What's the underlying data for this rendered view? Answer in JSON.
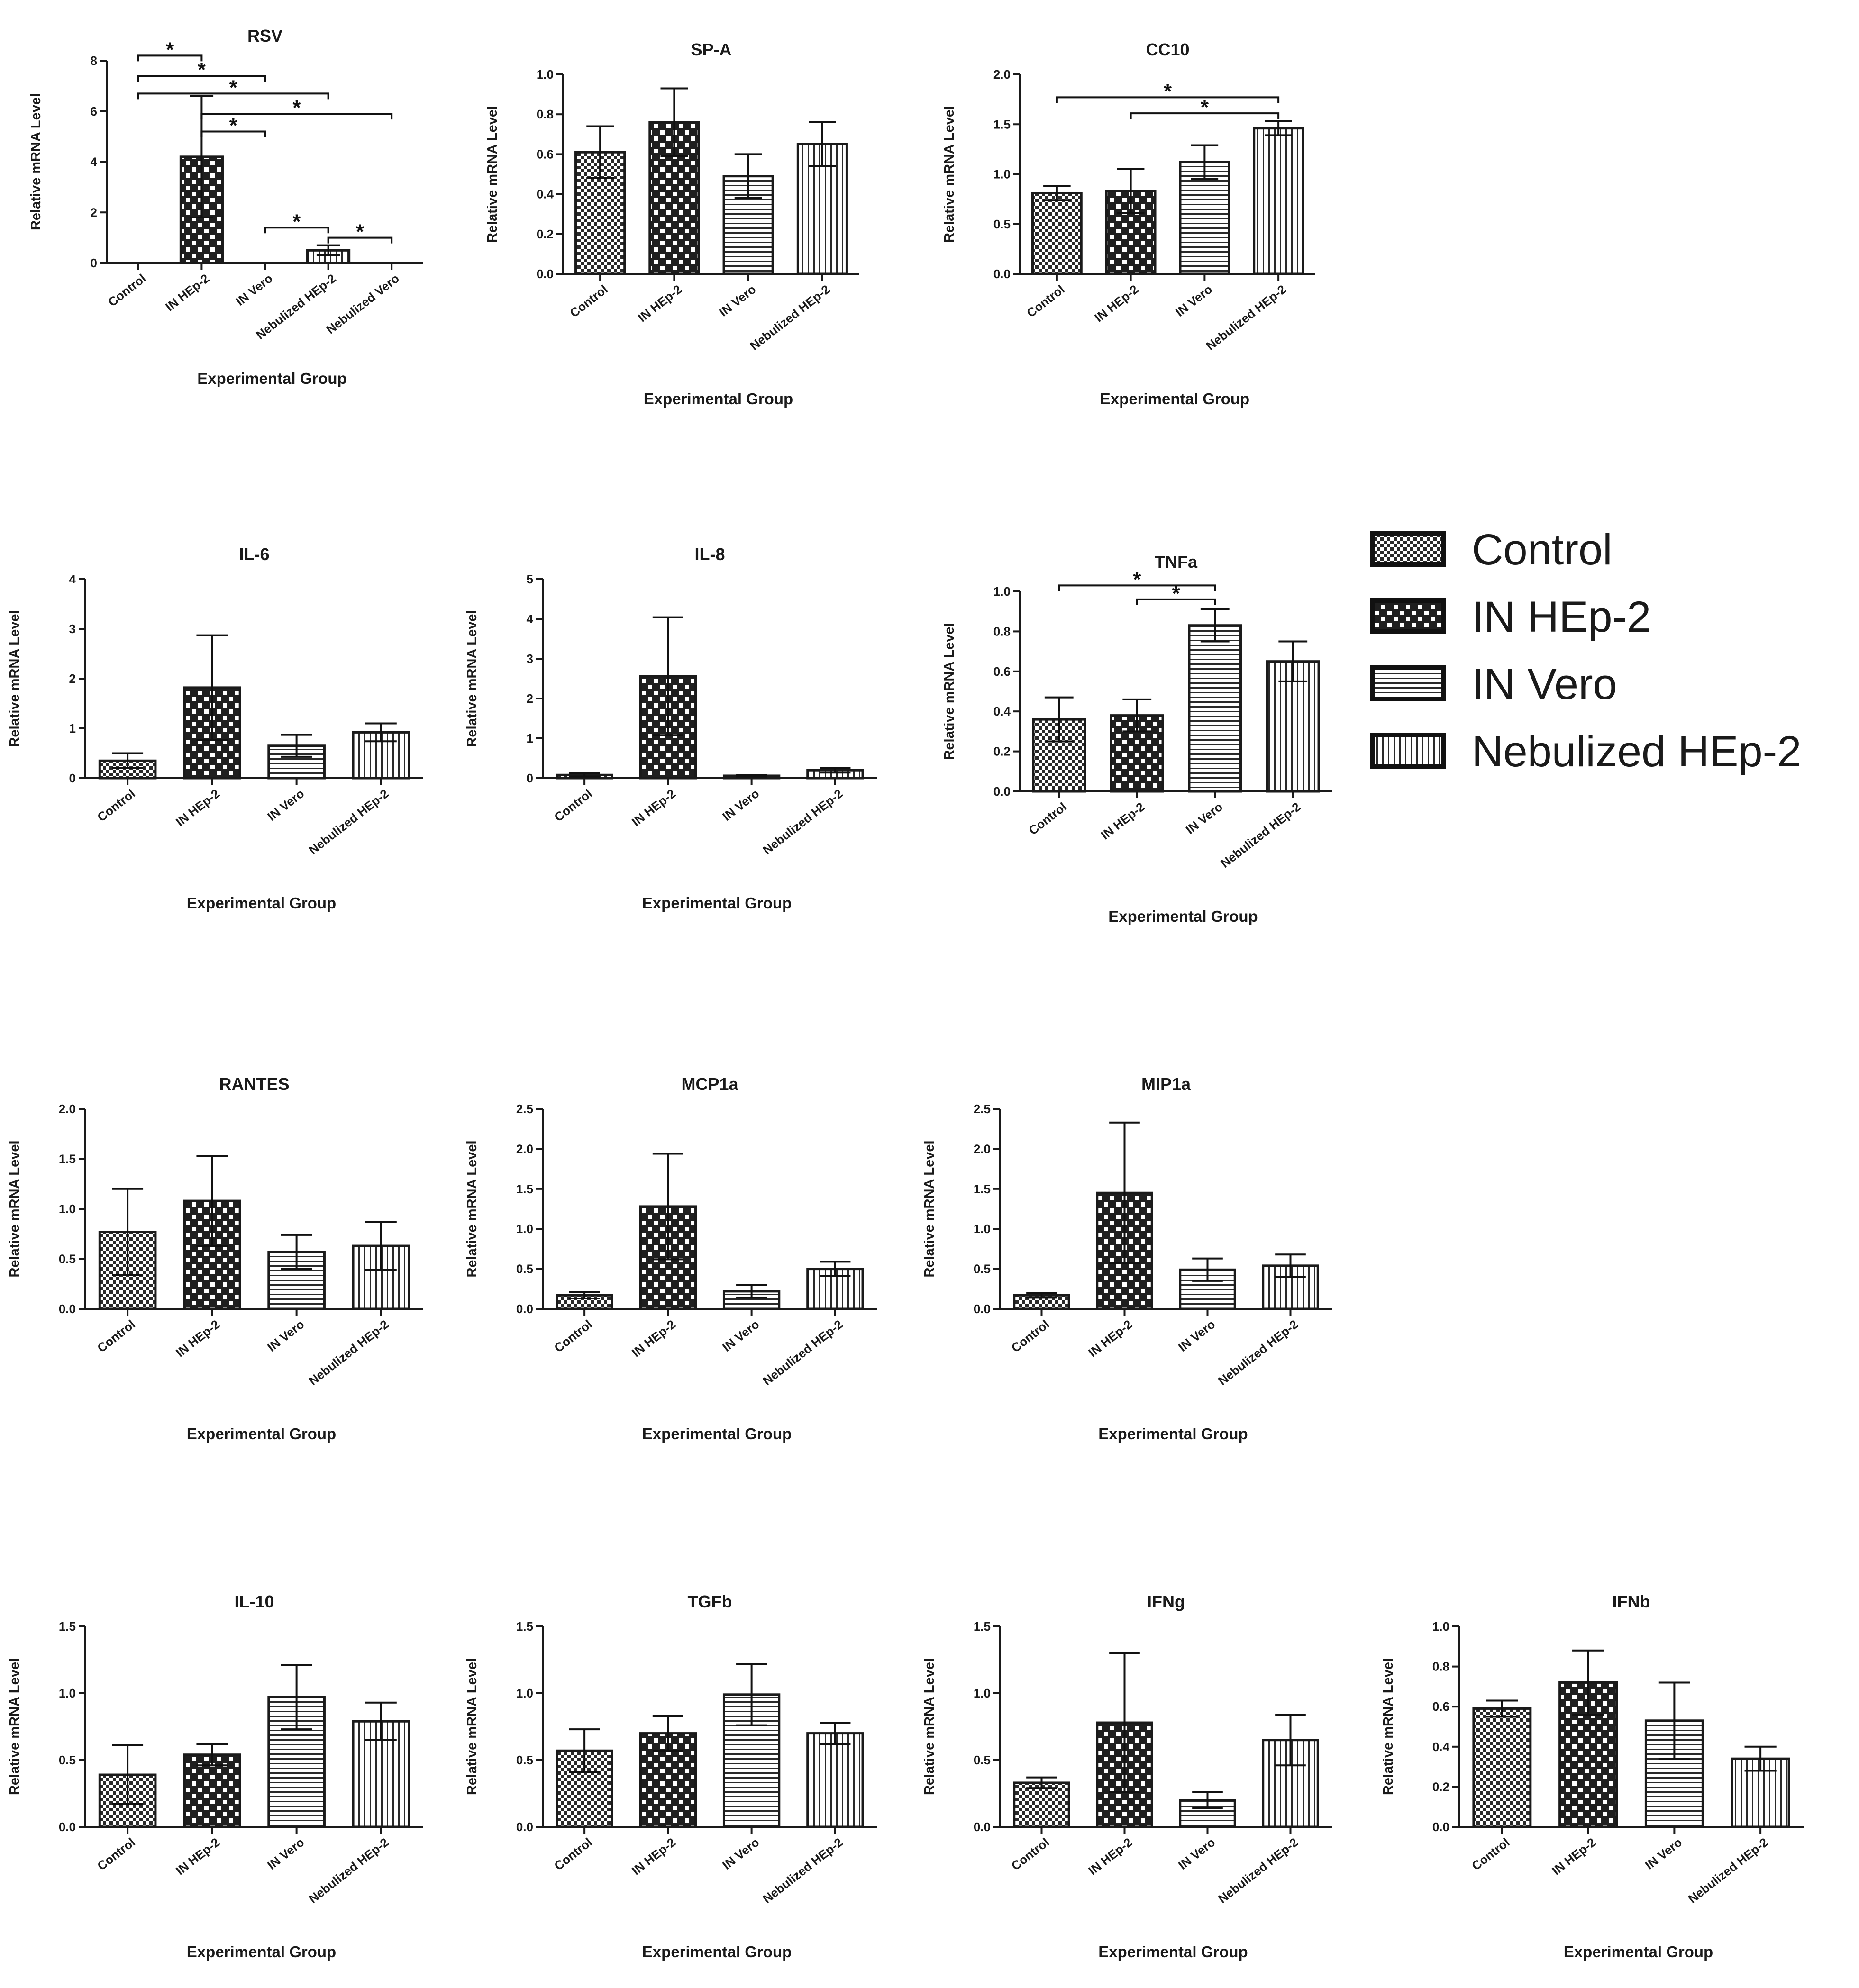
{
  "chart_data": [
    {
      "type": "bar",
      "title": "RSV",
      "xlabel": "Experimental Group",
      "ylabel": "Relative mRNA Level",
      "ylim": [
        0,
        8
      ],
      "yticks": [
        0,
        2,
        4,
        6,
        8
      ],
      "tick_labels": [
        "0",
        "2",
        "4",
        "6",
        "8"
      ],
      "categories": [
        "Control",
        "IN HEp-2",
        "IN Vero",
        "Nebulized HEp-2",
        "Nebulized Vero"
      ],
      "patterns": [
        "control",
        "inhep2",
        "invero",
        "nebhep2",
        "nebvero"
      ],
      "values": [
        0,
        4.2,
        0,
        0.5,
        0
      ],
      "errors": [
        0,
        2.4,
        0,
        0.2,
        0
      ],
      "significance": [
        {
          "from": 0,
          "to": 1,
          "y": 8.2,
          "label": "*"
        },
        {
          "from": 0,
          "to": 2,
          "y": 7.4,
          "label": "*"
        },
        {
          "from": 0,
          "to": 3,
          "y": 6.7,
          "label": "*"
        },
        {
          "from": 1,
          "to": 4,
          "y": 5.9,
          "label": "*"
        },
        {
          "from": 1,
          "to": 2,
          "y": 5.2,
          "label": "*"
        },
        {
          "from": 2,
          "to": 3,
          "y": 1.4,
          "label": "*"
        },
        {
          "from": 3,
          "to": 4,
          "y": 1.0,
          "label": "*"
        }
      ]
    },
    {
      "type": "bar",
      "title": "SP-A",
      "xlabel": "Experimental Group",
      "ylabel": "Relative mRNA Level",
      "ylim": [
        0,
        1
      ],
      "yticks": [
        0,
        0.2,
        0.4,
        0.6,
        0.8,
        1.0
      ],
      "tick_labels": [
        "0.0",
        "0.2",
        "0.4",
        "0.6",
        "0.8",
        "1.0"
      ],
      "categories": [
        "Control",
        "IN HEp-2",
        "IN Vero",
        "Nebulized HEp-2"
      ],
      "patterns": [
        "control",
        "inhep2",
        "invero",
        "nebhep2"
      ],
      "values": [
        0.61,
        0.76,
        0.49,
        0.65
      ],
      "errors": [
        0.13,
        0.17,
        0.11,
        0.11
      ],
      "significance": []
    },
    {
      "type": "bar",
      "title": "CC10",
      "xlabel": "Experimental Group",
      "ylabel": "Relative mRNA Level",
      "ylim": [
        0,
        2
      ],
      "yticks": [
        0,
        0.5,
        1,
        1.5,
        2
      ],
      "tick_labels": [
        "0.0",
        "0.5",
        "1.0",
        "1.5",
        "2.0"
      ],
      "categories": [
        "Control",
        "IN HEp-2",
        "IN Vero",
        "Nebulized HEp-2"
      ],
      "patterns": [
        "control",
        "inhep2",
        "invero",
        "nebhep2"
      ],
      "values": [
        0.81,
        0.83,
        1.12,
        1.46
      ],
      "errors": [
        0.07,
        0.22,
        0.17,
        0.07
      ],
      "significance": [
        {
          "from": 0,
          "to": 3,
          "y": 1.77,
          "label": "*"
        },
        {
          "from": 1,
          "to": 3,
          "y": 1.61,
          "label": "*"
        }
      ]
    },
    {
      "type": "bar",
      "title": "IL-6",
      "xlabel": "Experimental Group",
      "ylabel": "Relative mRNA Level",
      "ylim": [
        0,
        4
      ],
      "yticks": [
        0,
        1,
        2,
        3,
        4
      ],
      "tick_labels": [
        "0",
        "1",
        "2",
        "3",
        "4"
      ],
      "categories": [
        "Control",
        "IN HEp-2",
        "IN Vero",
        "Nebulized HEp-2"
      ],
      "patterns": [
        "control",
        "inhep2",
        "invero",
        "nebhep2"
      ],
      "values": [
        0.35,
        1.82,
        0.65,
        0.92
      ],
      "errors": [
        0.15,
        1.05,
        0.22,
        0.18
      ],
      "significance": []
    },
    {
      "type": "bar",
      "title": "IL-8",
      "xlabel": "Experimental Group",
      "ylabel": "Relative mRNA Level",
      "ylim": [
        0,
        5
      ],
      "yticks": [
        0,
        1,
        2,
        3,
        4,
        5
      ],
      "tick_labels": [
        "0",
        "1",
        "2",
        "3",
        "4",
        "5"
      ],
      "categories": [
        "Control",
        "IN HEp-2",
        "IN Vero",
        "Nebulized HEp-2"
      ],
      "patterns": [
        "control",
        "inhep2",
        "invero",
        "nebhep2"
      ],
      "values": [
        0.08,
        2.56,
        0.06,
        0.2
      ],
      "errors": [
        0.04,
        1.48,
        0.02,
        0.06
      ],
      "significance": []
    },
    {
      "type": "bar",
      "title": "TNFa",
      "xlabel": "Experimental Group",
      "ylabel": "Relative mRNA Level",
      "ylim": [
        0,
        1
      ],
      "yticks": [
        0,
        0.2,
        0.4,
        0.6,
        0.8,
        1.0
      ],
      "tick_labels": [
        "0.0",
        "0.2",
        "0.4",
        "0.6",
        "0.8",
        "1.0"
      ],
      "categories": [
        "Control",
        "IN HEp-2",
        "IN Vero",
        "Nebulized HEp-2"
      ],
      "patterns": [
        "control",
        "inhep2",
        "invero",
        "nebhep2"
      ],
      "values": [
        0.36,
        0.38,
        0.83,
        0.65
      ],
      "errors": [
        0.11,
        0.08,
        0.08,
        0.1
      ],
      "significance": [
        {
          "from": 0,
          "to": 2,
          "y": 1.03,
          "label": "*"
        },
        {
          "from": 1,
          "to": 2,
          "y": 0.96,
          "label": "*"
        }
      ]
    },
    {
      "type": "bar",
      "title": "RANTES",
      "xlabel": "Experimental Group",
      "ylabel": "Relative mRNA Level",
      "ylim": [
        0,
        2
      ],
      "yticks": [
        0,
        0.5,
        1,
        1.5,
        2
      ],
      "tick_labels": [
        "0.0",
        "0.5",
        "1.0",
        "1.5",
        "2.0"
      ],
      "categories": [
        "Control",
        "IN HEp-2",
        "IN Vero",
        "Nebulized HEp-2"
      ],
      "patterns": [
        "control",
        "inhep2",
        "invero",
        "nebhep2"
      ],
      "values": [
        0.77,
        1.08,
        0.57,
        0.63
      ],
      "errors": [
        0.43,
        0.45,
        0.17,
        0.24
      ],
      "significance": []
    },
    {
      "type": "bar",
      "title": "MCP1a",
      "xlabel": "Experimental Group",
      "ylabel": "Relative mRNA Level",
      "ylim": [
        0,
        2.5
      ],
      "yticks": [
        0,
        0.5,
        1,
        1.5,
        2,
        2.5
      ],
      "tick_labels": [
        "0.0",
        "0.5",
        "1.0",
        "1.5",
        "2.0",
        "2.5"
      ],
      "categories": [
        "Control",
        "IN HEp-2",
        "IN Vero",
        "Nebulized HEp-2"
      ],
      "patterns": [
        "control",
        "inhep2",
        "invero",
        "nebhep2"
      ],
      "values": [
        0.17,
        1.28,
        0.22,
        0.5
      ],
      "errors": [
        0.04,
        0.66,
        0.08,
        0.09
      ],
      "significance": []
    },
    {
      "type": "bar",
      "title": "MIP1a",
      "xlabel": "Experimental Group",
      "ylabel": "Relative mRNA Level",
      "ylim": [
        0,
        2.5
      ],
      "yticks": [
        0,
        0.5,
        1,
        1.5,
        2,
        2.5
      ],
      "tick_labels": [
        "0.0",
        "0.5",
        "1.0",
        "1.5",
        "2.0",
        "2.5"
      ],
      "categories": [
        "Control",
        "IN HEp-2",
        "IN Vero",
        "Nebulized HEp-2"
      ],
      "patterns": [
        "control",
        "inhep2",
        "invero",
        "nebhep2"
      ],
      "values": [
        0.17,
        1.45,
        0.49,
        0.54
      ],
      "errors": [
        0.03,
        0.88,
        0.14,
        0.14
      ],
      "significance": []
    },
    {
      "type": "bar",
      "title": "IL-10",
      "xlabel": "Experimental Group",
      "ylabel": "Relative mRNA Level",
      "ylim": [
        0,
        1.5
      ],
      "yticks": [
        0,
        0.5,
        1,
        1.5
      ],
      "tick_labels": [
        "0.0",
        "0.5",
        "1.0",
        "1.5"
      ],
      "categories": [
        "Control",
        "IN HEp-2",
        "IN Vero",
        "Nebulized HEp-2"
      ],
      "patterns": [
        "control",
        "inhep2",
        "invero",
        "nebhep2"
      ],
      "values": [
        0.39,
        0.54,
        0.97,
        0.79
      ],
      "errors": [
        0.22,
        0.08,
        0.24,
        0.14
      ],
      "significance": []
    },
    {
      "type": "bar",
      "title": "TGFb",
      "xlabel": "Experimental Group",
      "ylabel": "Relative mRNA Level",
      "ylim": [
        0,
        1.5
      ],
      "yticks": [
        0,
        0.5,
        1,
        1.5
      ],
      "tick_labels": [
        "0.0",
        "0.5",
        "1.0",
        "1.5"
      ],
      "categories": [
        "Control",
        "IN HEp-2",
        "IN Vero",
        "Nebulized HEp-2"
      ],
      "patterns": [
        "control",
        "inhep2",
        "invero",
        "nebhep2"
      ],
      "values": [
        0.57,
        0.7,
        0.99,
        0.7
      ],
      "errors": [
        0.16,
        0.13,
        0.23,
        0.08
      ],
      "significance": []
    },
    {
      "type": "bar",
      "title": "IFNg",
      "xlabel": "Experimental Group",
      "ylabel": "Relative mRNA Level",
      "ylim": [
        0,
        1.5
      ],
      "yticks": [
        0,
        0.5,
        1,
        1.5
      ],
      "tick_labels": [
        "0.0",
        "0.5",
        "1.0",
        "1.5"
      ],
      "categories": [
        "Control",
        "IN HEp-2",
        "IN Vero",
        "Nebulized HEp-2"
      ],
      "patterns": [
        "control",
        "inhep2",
        "invero",
        "nebhep2"
      ],
      "values": [
        0.33,
        0.78,
        0.2,
        0.65
      ],
      "errors": [
        0.04,
        0.52,
        0.06,
        0.19
      ],
      "significance": []
    },
    {
      "type": "bar",
      "title": "IFNb",
      "xlabel": "Experimental Group",
      "ylabel": "Relative mRNA Level",
      "ylim": [
        0,
        1
      ],
      "yticks": [
        0,
        0.2,
        0.4,
        0.6,
        0.8,
        1.0
      ],
      "tick_labels": [
        "0.0",
        "0.2",
        "0.4",
        "0.6",
        "0.8",
        "1.0"
      ],
      "categories": [
        "Control",
        "IN HEp-2",
        "IN Vero",
        "Nebulized HEp-2"
      ],
      "patterns": [
        "control",
        "inhep2",
        "invero",
        "nebhep2"
      ],
      "values": [
        0.59,
        0.72,
        0.53,
        0.34
      ],
      "errors": [
        0.04,
        0.16,
        0.19,
        0.06
      ],
      "significance": []
    }
  ],
  "legend": {
    "entries": [
      {
        "label": "Control",
        "pattern": "control"
      },
      {
        "label": "IN HEp-2",
        "pattern": "inhep2"
      },
      {
        "label": "IN Vero",
        "pattern": "invero"
      },
      {
        "label": "Nebulized HEp-2",
        "pattern": "nebhep2"
      }
    ]
  },
  "colors": {
    "ink": "#1a1a1a",
    "background": "#ffffff",
    "fill_light": "#ffffff",
    "fill_dark": "#222222"
  }
}
